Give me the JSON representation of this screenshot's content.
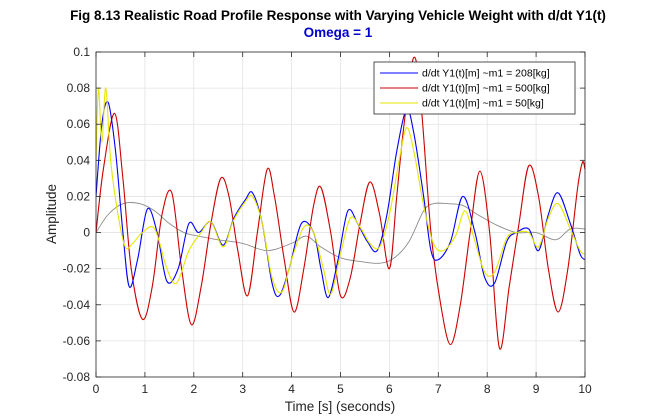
{
  "chart_data": {
    "type": "line",
    "title": "Fig 8.13 Realistic Road Profile Response with Varying Vehicle Weight with d/dt Y1(t)",
    "subtitle": "Omega = 1",
    "subtitle_color": "#0000CC",
    "xlabel": "Time [s] (seconds)",
    "ylabel": "Amplitude",
    "xlim": [
      0,
      10
    ],
    "ylim": [
      -0.08,
      0.1
    ],
    "grid": true,
    "legend_position": "top-right",
    "x_ticks": [
      0,
      1,
      2,
      3,
      4,
      5,
      6,
      7,
      8,
      9,
      10
    ],
    "x_tick_labels": [
      "0",
      "1",
      "2",
      "3",
      "4",
      "5",
      "6",
      "7",
      "8",
      "9",
      "10"
    ],
    "y_ticks": [
      -0.08,
      -0.06,
      -0.04,
      -0.02,
      0,
      0.02,
      0.04,
      0.06,
      0.08,
      0.1
    ],
    "y_tick_labels": [
      "-0.08",
      "-0.06",
      "-0.04",
      "-0.02",
      "0",
      "0.02",
      "0.04",
      "0.06",
      "0.08",
      "0.1"
    ],
    "series": [
      {
        "name": "d/dt Y1(t)[m] ~m1 = 208[kg]",
        "color": "#0000FF",
        "points": [
          [
            0,
            0.02
          ],
          [
            0.12,
            0.06
          ],
          [
            0.25,
            0.072
          ],
          [
            0.4,
            0.045
          ],
          [
            0.55,
            0.0
          ],
          [
            0.68,
            -0.03
          ],
          [
            0.85,
            -0.015
          ],
          [
            1.05,
            0.013
          ],
          [
            1.25,
            0.0
          ],
          [
            1.45,
            -0.027
          ],
          [
            1.68,
            -0.02
          ],
          [
            1.9,
            0.005
          ],
          [
            2.1,
            0.0
          ],
          [
            2.35,
            0.006
          ],
          [
            2.6,
            -0.007
          ],
          [
            2.82,
            0.008
          ],
          [
            3.05,
            0.018
          ],
          [
            3.2,
            0.022
          ],
          [
            3.4,
            0.005
          ],
          [
            3.6,
            -0.028
          ],
          [
            3.75,
            -0.035
          ],
          [
            3.95,
            -0.02
          ],
          [
            4.2,
            0.005
          ],
          [
            4.45,
            0.0
          ],
          [
            4.6,
            -0.02
          ],
          [
            4.75,
            -0.036
          ],
          [
            4.95,
            -0.015
          ],
          [
            5.15,
            0.012
          ],
          [
            5.35,
            0.005
          ],
          [
            5.55,
            -0.005
          ],
          [
            5.75,
            -0.01
          ],
          [
            5.95,
            0.01
          ],
          [
            6.15,
            0.045
          ],
          [
            6.35,
            0.068
          ],
          [
            6.5,
            0.055
          ],
          [
            6.7,
            0.02
          ],
          [
            6.85,
            -0.01
          ],
          [
            7.0,
            -0.015
          ],
          [
            7.25,
            -0.005
          ],
          [
            7.5,
            0.02
          ],
          [
            7.75,
            0.0
          ],
          [
            7.95,
            -0.025
          ],
          [
            8.15,
            -0.028
          ],
          [
            8.4,
            -0.005
          ],
          [
            8.6,
            0.0
          ],
          [
            8.85,
            0.002
          ],
          [
            9.05,
            -0.01
          ],
          [
            9.25,
            0.01
          ],
          [
            9.45,
            0.022
          ],
          [
            9.7,
            0.005
          ],
          [
            9.9,
            -0.012
          ],
          [
            10.0,
            -0.015
          ]
        ]
      },
      {
        "name": "d/dt Y1(t)[m] ~m1 = 500[kg]",
        "color": "#CC0000",
        "points": [
          [
            0,
            0.0
          ],
          [
            0.15,
            0.035
          ],
          [
            0.38,
            0.066
          ],
          [
            0.55,
            0.03
          ],
          [
            0.72,
            -0.02
          ],
          [
            0.95,
            -0.048
          ],
          [
            1.15,
            -0.03
          ],
          [
            1.35,
            0.01
          ],
          [
            1.55,
            0.022
          ],
          [
            1.75,
            -0.02
          ],
          [
            1.95,
            -0.051
          ],
          [
            2.15,
            -0.03
          ],
          [
            2.35,
            0.005
          ],
          [
            2.55,
            0.03
          ],
          [
            2.72,
            0.02
          ],
          [
            2.9,
            -0.01
          ],
          [
            3.1,
            -0.035
          ],
          [
            3.3,
            0.0
          ],
          [
            3.5,
            0.035
          ],
          [
            3.65,
            0.02
          ],
          [
            3.85,
            -0.015
          ],
          [
            4.05,
            -0.044
          ],
          [
            4.25,
            -0.02
          ],
          [
            4.45,
            0.015
          ],
          [
            4.6,
            0.025
          ],
          [
            4.8,
            0.0
          ],
          [
            5.0,
            -0.035
          ],
          [
            5.2,
            -0.025
          ],
          [
            5.4,
            0.005
          ],
          [
            5.6,
            0.028
          ],
          [
            5.8,
            0.01
          ],
          [
            6.0,
            -0.02
          ],
          [
            6.15,
            0.02
          ],
          [
            6.3,
            0.06
          ],
          [
            6.5,
            0.097
          ],
          [
            6.65,
            0.07
          ],
          [
            6.85,
            0.0
          ],
          [
            7.05,
            -0.04
          ],
          [
            7.25,
            -0.062
          ],
          [
            7.45,
            -0.04
          ],
          [
            7.65,
            0.0
          ],
          [
            7.85,
            0.034
          ],
          [
            8.05,
            0.0
          ],
          [
            8.25,
            -0.064
          ],
          [
            8.45,
            -0.03
          ],
          [
            8.65,
            0.005
          ],
          [
            8.85,
            0.037
          ],
          [
            9.05,
            0.02
          ],
          [
            9.25,
            -0.02
          ],
          [
            9.45,
            -0.044
          ],
          [
            9.65,
            -0.02
          ],
          [
            9.85,
            0.025
          ],
          [
            9.95,
            0.039
          ],
          [
            10.0,
            0.035
          ]
        ]
      },
      {
        "name": "d/dt Y1(t)[m] ~m1 = 50[kg]",
        "color": "#E6E600",
        "points": [
          [
            0,
            0.04
          ],
          [
            0.05,
            0.08
          ],
          [
            0.12,
            0.05
          ],
          [
            0.2,
            0.08
          ],
          [
            0.3,
            0.04
          ],
          [
            0.45,
            0.01
          ],
          [
            0.6,
            -0.008
          ],
          [
            0.75,
            -0.006
          ],
          [
            0.95,
            0.0
          ],
          [
            1.2,
            0.002
          ],
          [
            1.45,
            -0.02
          ],
          [
            1.65,
            -0.028
          ],
          [
            1.9,
            -0.01
          ],
          [
            2.15,
            0.0
          ],
          [
            2.35,
            0.006
          ],
          [
            2.6,
            -0.008
          ],
          [
            2.8,
            0.006
          ],
          [
            3.05,
            0.017
          ],
          [
            3.2,
            0.02
          ],
          [
            3.4,
            0.005
          ],
          [
            3.6,
            -0.025
          ],
          [
            3.8,
            -0.033
          ],
          [
            4.0,
            -0.015
          ],
          [
            4.25,
            0.003
          ],
          [
            4.45,
            0.0
          ],
          [
            4.65,
            -0.02
          ],
          [
            4.8,
            -0.034
          ],
          [
            5.0,
            -0.012
          ],
          [
            5.2,
            0.008
          ],
          [
            5.4,
            0.003
          ],
          [
            5.6,
            -0.006
          ],
          [
            5.8,
            -0.008
          ],
          [
            6.0,
            0.01
          ],
          [
            6.2,
            0.04
          ],
          [
            6.35,
            0.058
          ],
          [
            6.5,
            0.045
          ],
          [
            6.7,
            0.015
          ],
          [
            6.9,
            -0.006
          ],
          [
            7.1,
            -0.01
          ],
          [
            7.35,
            -0.002
          ],
          [
            7.55,
            0.012
          ],
          [
            7.75,
            -0.005
          ],
          [
            7.95,
            -0.022
          ],
          [
            8.15,
            -0.022
          ],
          [
            8.4,
            -0.003
          ],
          [
            8.6,
            0.0
          ],
          [
            8.85,
            0.0
          ],
          [
            9.05,
            -0.008
          ],
          [
            9.25,
            0.008
          ],
          [
            9.45,
            0.016
          ],
          [
            9.7,
            0.002
          ],
          [
            9.9,
            -0.01
          ],
          [
            10.0,
            -0.012
          ]
        ]
      },
      {
        "name": "",
        "color": "#8C8C8C",
        "points": [
          [
            0,
            0.0
          ],
          [
            0.25,
            0.01
          ],
          [
            0.55,
            0.016
          ],
          [
            0.9,
            0.016
          ],
          [
            1.2,
            0.012
          ],
          [
            1.5,
            0.005
          ],
          [
            1.8,
            0.0
          ],
          [
            2.1,
            -0.002
          ],
          [
            2.5,
            -0.004
          ],
          [
            3.0,
            -0.006
          ],
          [
            3.5,
            -0.01
          ],
          [
            4.0,
            -0.006
          ],
          [
            4.3,
            -0.002
          ],
          [
            4.6,
            -0.008
          ],
          [
            5.0,
            -0.014
          ],
          [
            5.4,
            -0.016
          ],
          [
            5.8,
            -0.017
          ],
          [
            6.1,
            -0.014
          ],
          [
            6.4,
            -0.005
          ],
          [
            6.7,
            0.012
          ],
          [
            6.9,
            0.016
          ],
          [
            7.2,
            0.016
          ],
          [
            7.5,
            0.015
          ],
          [
            7.8,
            0.01
          ],
          [
            8.2,
            0.004
          ],
          [
            8.6,
            0.0
          ],
          [
            9.0,
            0.0
          ],
          [
            9.4,
            -0.004
          ],
          [
            9.7,
            0.002
          ],
          [
            10.0,
            0.002
          ]
        ]
      }
    ]
  }
}
